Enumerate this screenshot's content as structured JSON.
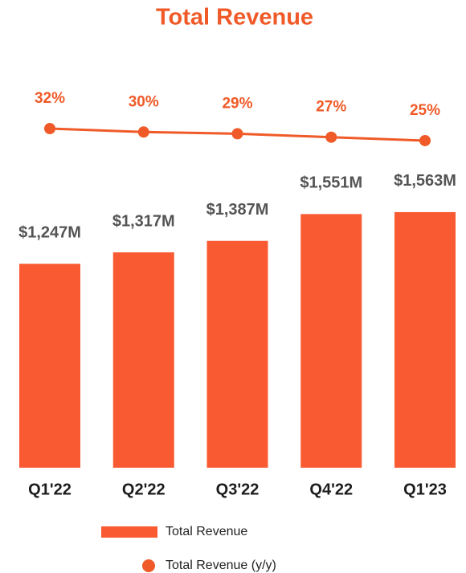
{
  "chart_data": {
    "type": "bar",
    "title": "Total Revenue",
    "categories": [
      "Q1'22",
      "Q2'22",
      "Q3'22",
      "Q4'22",
      "Q1'23"
    ],
    "series": [
      {
        "name": "Total Revenue",
        "type": "bar",
        "color": "#fa5a32",
        "values": [
          1247,
          1317,
          1387,
          1551,
          1563
        ],
        "value_labels": [
          "$1,247M",
          "$1,317M",
          "$1,387M",
          "$1,551M",
          "$1,563M"
        ]
      },
      {
        "name": "Total Revenue (y/y)",
        "type": "line",
        "axis": "y2",
        "color": "#f05a28",
        "values": [
          32,
          30,
          29,
          27,
          25
        ],
        "value_labels": [
          "32%",
          "30%",
          "29%",
          "27%",
          "25%"
        ]
      }
    ]
  }
}
